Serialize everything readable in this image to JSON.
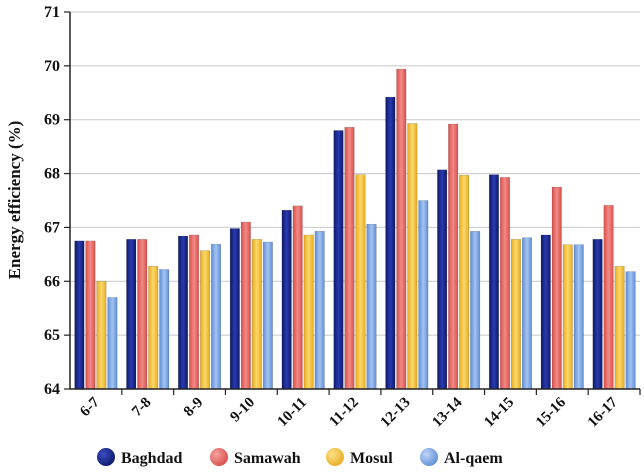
{
  "chart_data": {
    "type": "bar",
    "title": "",
    "xlabel": "",
    "ylabel": "Energy efficiency (%)",
    "ylim": [
      64,
      71
    ],
    "yticks": [
      64,
      65,
      66,
      67,
      68,
      69,
      70,
      71
    ],
    "grid": true,
    "legend_position": "bottom",
    "categories": [
      "6-7",
      "7-8",
      "8-9",
      "9-10",
      "10-11",
      "11-12",
      "12-13",
      "13-14",
      "14-15",
      "15-16",
      "16-17"
    ],
    "series": [
      {
        "name": "Baghdad",
        "color": "#1a2a8c",
        "values": [
          66.75,
          66.78,
          66.84,
          66.98,
          67.32,
          68.8,
          69.42,
          68.07,
          67.98,
          66.86,
          66.78
        ]
      },
      {
        "name": "Samawah",
        "color": "#e86a66",
        "values": [
          66.75,
          66.78,
          66.86,
          67.1,
          67.4,
          68.86,
          69.94,
          68.92,
          67.93,
          67.75,
          67.41
        ]
      },
      {
        "name": "Mosul",
        "color": "#f3c443",
        "values": [
          66.0,
          66.28,
          66.57,
          66.78,
          66.86,
          67.98,
          68.93,
          67.97,
          66.78,
          66.68,
          66.28
        ]
      },
      {
        "name": "Al-qaem",
        "color": "#7fa8e6",
        "values": [
          65.7,
          66.22,
          66.69,
          66.73,
          66.93,
          67.06,
          67.5,
          66.93,
          66.81,
          66.68,
          66.18
        ]
      }
    ]
  }
}
